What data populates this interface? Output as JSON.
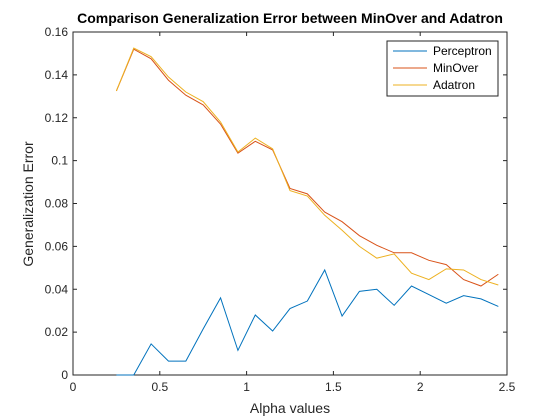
{
  "chart_data": {
    "type": "line",
    "title": "Comparison Generalization Error between MinOver and Adatron",
    "xlabel": "Alpha values",
    "ylabel": "Generalization Error",
    "xlim": [
      0,
      2.5
    ],
    "ylim": [
      0,
      0.16
    ],
    "xticks": [
      0,
      0.5,
      1,
      1.5,
      2,
      2.5
    ],
    "xtick_labels": [
      "0",
      "0.5",
      "1",
      "1.5",
      "2",
      "2.5"
    ],
    "yticks": [
      0,
      0.02,
      0.04,
      0.06,
      0.08,
      0.1,
      0.12,
      0.14,
      0.16
    ],
    "ytick_labels": [
      "0",
      "0.02",
      "0.04",
      "0.06",
      "0.08",
      "0.1",
      "0.12",
      "0.14",
      "0.16"
    ],
    "grid": false,
    "legend_position": "top-right",
    "x": [
      0.25,
      0.35,
      0.45,
      0.55,
      0.65,
      0.75,
      0.85,
      0.95,
      1.05,
      1.15,
      1.25,
      1.35,
      1.45,
      1.55,
      1.65,
      1.75,
      1.85,
      1.95,
      2.05,
      2.15,
      2.25,
      2.35,
      2.45
    ],
    "series": [
      {
        "name": "Perceptron",
        "color": "#0072BD",
        "values": [
          0,
          0,
          0.0145,
          0.0065,
          0.0065,
          0.0215,
          0.036,
          0.0115,
          0.028,
          0.0205,
          0.031,
          0.0345,
          0.049,
          0.0275,
          0.039,
          0.04,
          0.0325,
          0.0415,
          0.0375,
          0.0335,
          0.037,
          0.0355,
          0.032
        ]
      },
      {
        "name": "MinOver",
        "color": "#D95319",
        "values": [
          0.1325,
          0.152,
          0.1475,
          0.1375,
          0.1305,
          0.126,
          0.117,
          0.1035,
          0.109,
          0.105,
          0.087,
          0.0845,
          0.076,
          0.0715,
          0.065,
          0.0605,
          0.057,
          0.057,
          0.0535,
          0.0515,
          0.0445,
          0.0415,
          0.047
        ]
      },
      {
        "name": "Adatron",
        "color": "#EDB120",
        "values": [
          0.1325,
          0.1525,
          0.1485,
          0.139,
          0.132,
          0.1275,
          0.118,
          0.104,
          0.1105,
          0.1055,
          0.086,
          0.0835,
          0.0745,
          0.0675,
          0.06,
          0.0545,
          0.0565,
          0.0475,
          0.0445,
          0.0495,
          0.049,
          0.0445,
          0.042
        ]
      }
    ]
  }
}
